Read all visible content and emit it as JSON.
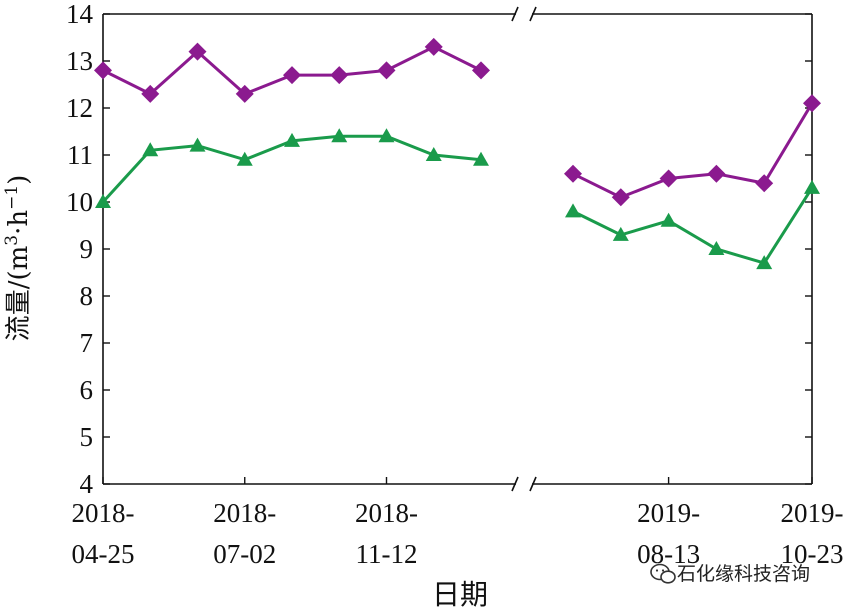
{
  "chart_data": {
    "type": "line",
    "xlabel": "日期",
    "ylabel_main": "流量/(m",
    "ylabel_sup1": "3",
    "ylabel_mid": "·h",
    "ylabel_sup2": "−1",
    "ylabel_end": ")",
    "ylim": [
      4,
      14
    ],
    "y_ticks": [
      4,
      5,
      6,
      7,
      8,
      9,
      10,
      11,
      12,
      13,
      14
    ],
    "axis_break": "between 2018-11 and 2019-08",
    "x_tick_labels": [
      {
        "line1": "2018-",
        "line2": "04-25"
      },
      {
        "line1": "2018-",
        "line2": "07-02"
      },
      {
        "line1": "2018-",
        "line2": "11-12"
      },
      {
        "line1": "2019-",
        "line2": "08-13"
      },
      {
        "line1": "2019-",
        "line2": "10-23"
      }
    ],
    "segments": [
      {
        "x": [
          "2018-04-25",
          "",
          "",
          "2018-07-02",
          "",
          "",
          "2018-11-12",
          "",
          ""
        ],
        "series": [
          {
            "marker": "diamond",
            "color": "#8b1a8f",
            "values": [
              12.8,
              12.3,
              13.2,
              12.3,
              12.7,
              12.7,
              12.8,
              13.3,
              12.8
            ]
          },
          {
            "marker": "triangle",
            "color": "#1a9b4b",
            "values": [
              10.0,
              11.1,
              11.2,
              10.9,
              11.3,
              11.4,
              11.4,
              11.0,
              10.9
            ]
          }
        ]
      },
      {
        "x": [
          "",
          "",
          "2019-08-13",
          "",
          "",
          "2019-10-23"
        ],
        "series": [
          {
            "marker": "diamond",
            "color": "#8b1a8f",
            "values": [
              10.6,
              10.1,
              10.5,
              10.6,
              10.4,
              12.1
            ]
          },
          {
            "marker": "triangle",
            "color": "#1a9b4b",
            "values": [
              9.8,
              9.3,
              9.6,
              9.0,
              8.7,
              10.3
            ]
          }
        ]
      }
    ],
    "grid": false,
    "legend": "none"
  },
  "watermark": {
    "text": "石化缘科技咨询",
    "icon": "wechat-icon"
  }
}
